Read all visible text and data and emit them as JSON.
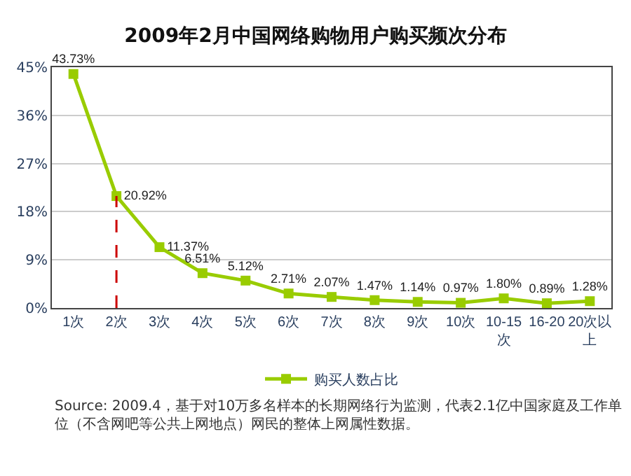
{
  "chart_data": {
    "type": "line",
    "title": "2009年2月中国网络购物用户购买频次分布",
    "categories": [
      "1次",
      "2次",
      "3次",
      "4次",
      "5次",
      "6次",
      "7次",
      "8次",
      "9次",
      "10次",
      "10-15次",
      "16-20",
      "20次以上"
    ],
    "series": [
      {
        "name": "购买人数占比",
        "color": "#99cc00",
        "values": [
          43.73,
          20.92,
          11.37,
          6.51,
          5.12,
          2.71,
          2.07,
          1.47,
          1.14,
          0.97,
          1.8,
          0.89,
          1.28
        ],
        "value_labels": [
          "43.73%",
          "20.92%",
          "11.37%",
          "6.51%",
          "5.12%",
          "2.71%",
          "2.07%",
          "1.47%",
          "1.14%",
          "0.97%",
          "1.80%",
          "0.89%",
          "1.28%"
        ]
      }
    ],
    "ylim": [
      0,
      45
    ],
    "yticks": [
      {
        "value": 0,
        "label": "0%"
      },
      {
        "value": 9,
        "label": "9%"
      },
      {
        "value": 18,
        "label": "18%"
      },
      {
        "value": 27,
        "label": "27%"
      },
      {
        "value": 36,
        "label": "36%"
      },
      {
        "value": 45,
        "label": "45%"
      }
    ],
    "grid": "y",
    "legend": "bottom",
    "marker": "square",
    "line_style": "solid",
    "ref_lines": [
      {
        "axis": "x",
        "value": "2次",
        "color": "#cc0000",
        "line_style": "dashed"
      }
    ],
    "annotations": [
      "Source: 2009.4，基于对10万多名样本的长期网络行为监测，代表2.1亿中国家庭及工作单位（不含网吧等公共上网地点）网民的整体上网属性数据。"
    ]
  }
}
